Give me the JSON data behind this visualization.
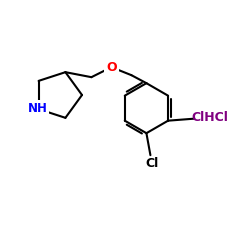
{
  "bg_color": "#ffffff",
  "bond_color": "#000000",
  "N_color": "#0000ff",
  "O_color": "#ff0000",
  "Cl_color": "#800080",
  "Cl2_color": "#000000",
  "NH_label": "NH",
  "O_label": "O",
  "ClHCl_label": "ClHCl",
  "Cl_label": "Cl",
  "figsize": [
    2.5,
    2.5
  ],
  "dpi": 100,
  "lw": 1.5
}
